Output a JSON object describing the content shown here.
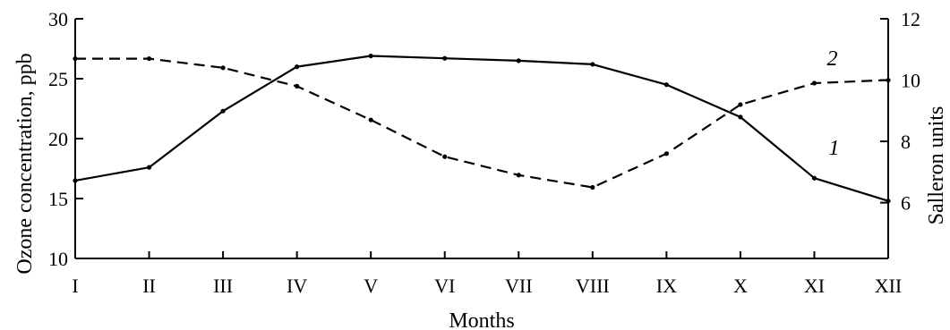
{
  "chart_data": {
    "type": "line",
    "categories": [
      "I",
      "II",
      "III",
      "IV",
      "V",
      "VI",
      "VII",
      "VIII",
      "IX",
      "X",
      "XI",
      "XII"
    ],
    "xlabel": "Months",
    "ylabel_left": "Ozone concentration,  ppb",
    "ylabel_right": "Salleron units",
    "ylim_left": [
      10,
      30
    ],
    "yticks_left": [
      "10",
      "15",
      "20",
      "25",
      "30"
    ],
    "ylim_right": [
      4.18,
      12
    ],
    "yticks_right": [
      "6",
      "8",
      "10",
      "12"
    ],
    "grid": false,
    "series": [
      {
        "name": "1",
        "axis": "left",
        "style": "solid",
        "color": "#000000",
        "values": [
          16.5,
          17.6,
          22.3,
          26.0,
          26.9,
          26.7,
          26.5,
          26.2,
          24.5,
          21.8,
          16.7,
          14.8
        ]
      },
      {
        "name": "2",
        "axis": "right",
        "style": "dashed",
        "color": "#000000",
        "values": [
          10.7,
          10.7,
          10.4,
          9.8,
          8.7,
          7.5,
          6.9,
          6.5,
          7.6,
          9.2,
          9.9,
          10.0
        ]
      }
    ]
  }
}
